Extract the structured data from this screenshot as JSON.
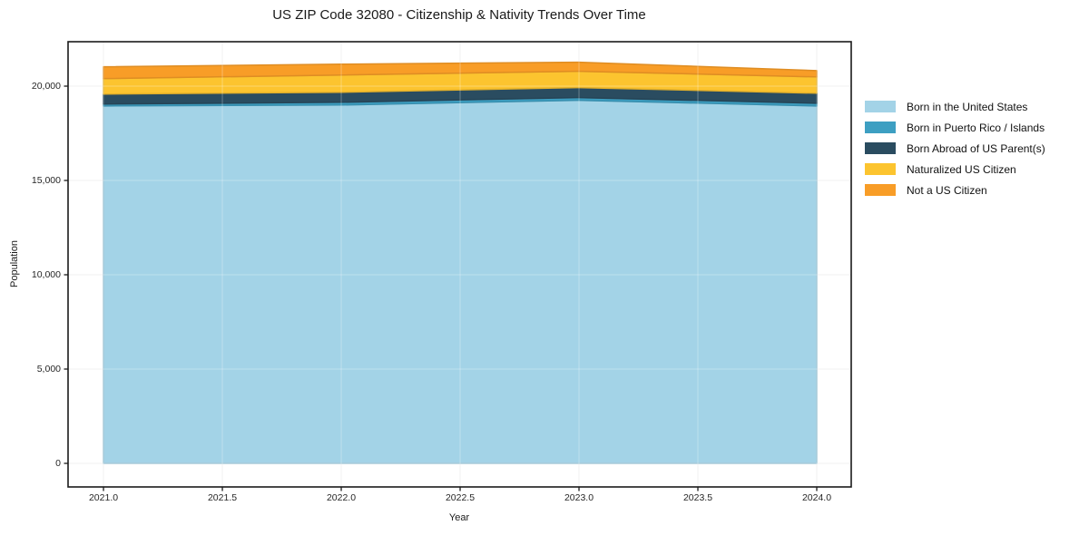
{
  "chart_data": {
    "type": "area",
    "stacked": true,
    "title": "US ZIP Code 32080 - Citizenship & Nativity Trends Over Time",
    "xlabel": "Year",
    "ylabel": "Population",
    "x": [
      2021,
      2022,
      2023,
      2024
    ],
    "series": [
      {
        "name": "Born in the United States",
        "color": "#a3d3e7",
        "values": [
          18950,
          19000,
          19250,
          18950
        ]
      },
      {
        "name": "Born in Puerto Rico / Islands",
        "color": "#3d9fc2",
        "values": [
          100,
          145,
          145,
          145
        ]
      },
      {
        "name": "Born Abroad of US Parent(s)",
        "color": "#2a4c60",
        "values": [
          530,
          530,
          530,
          530
        ]
      },
      {
        "name": "Naturalized US Citizen",
        "color": "#fcc42f",
        "values": [
          820,
          915,
          865,
          865
        ]
      },
      {
        "name": "Not a US Citizen",
        "color": "#f89d27",
        "values": [
          625,
          575,
          480,
          335
        ]
      }
    ],
    "x_ticks": {
      "values": [
        2021.0,
        2021.5,
        2022.0,
        2022.5,
        2023.0,
        2023.5,
        2024.0
      ],
      "labels": [
        "2021.0",
        "2021.5",
        "2022.0",
        "2022.5",
        "2023.0",
        "2023.5",
        "2024.0"
      ]
    },
    "y_ticks": {
      "values": [
        0,
        5000,
        10000,
        15000,
        20000
      ],
      "labels": [
        "0",
        "5,000",
        "10,000",
        "15,000",
        "20,000"
      ]
    },
    "xlim": [
      2020.851,
      2024.145
    ],
    "ylim": [
      -1250,
      22356
    ],
    "grid": true,
    "legend_position": "right-outside",
    "frame_color": "#1a1a1a",
    "gridline_color": "#ececec",
    "background": "#ffffff"
  }
}
